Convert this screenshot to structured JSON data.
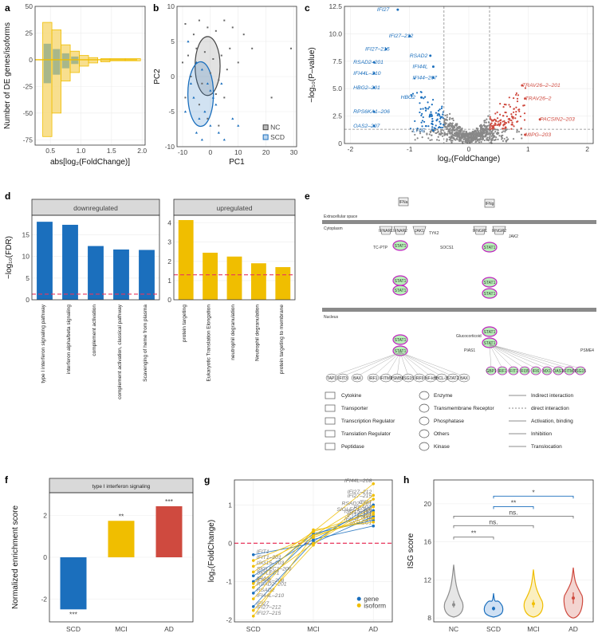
{
  "colors": {
    "blue": "#1b6fbd",
    "yellow": "#f0be00",
    "red": "#cf4a3f",
    "gray": "#8c8c8c",
    "dash": "#e8365d"
  },
  "panel_labels": [
    "a",
    "b",
    "c",
    "d",
    "e",
    "f",
    "g",
    "h"
  ],
  "chart_data": [
    {
      "id": "a",
      "type": "bar",
      "xlabel": "abs[log₂(FoldChange)]",
      "ylabel": "Number of DE genes/isoforms",
      "xlim": [
        0.25,
        2.05
      ],
      "ylim": [
        -80,
        50
      ],
      "xticks": [
        "0.5",
        "1.0",
        "1.5",
        "2.0"
      ],
      "yticks": [
        "50",
        "25",
        "0",
        "-25",
        "-50",
        "-75"
      ],
      "series": [
        {
          "values": [
            [
              0.45,
              -72,
              35
            ],
            [
              0.6,
              -50,
              28
            ],
            [
              0.75,
              -20,
              14
            ],
            [
              0.9,
              -12,
              8
            ],
            [
              1.05,
              -6,
              4
            ],
            [
              1.2,
              -3,
              2
            ],
            [
              1.4,
              -2,
              1
            ],
            [
              1.6,
              -1,
              1
            ],
            [
              1.85,
              -1,
              1
            ]
          ]
        },
        {
          "values": [
            [
              0.45,
              -22,
              15
            ],
            [
              0.6,
              -14,
              10
            ],
            [
              0.75,
              -8,
              6
            ],
            [
              0.9,
              -4,
              3
            ]
          ]
        }
      ]
    },
    {
      "id": "b",
      "type": "scatter",
      "xlabel": "PC1",
      "ylabel": "PC2",
      "xlim": [
        -12,
        31
      ],
      "ylim": [
        -10,
        10
      ],
      "xticks": [
        "-10",
        "0",
        "10",
        "20",
        "30"
      ],
      "yticks": [
        "10",
        "5",
        "0",
        "-5",
        "-10"
      ],
      "legend": [
        "NC",
        "SCD"
      ],
      "legend_position": "bottom-right",
      "series": [
        {
          "name": "NC",
          "points": [
            [
              -9,
              7.5
            ],
            [
              -6,
              6
            ],
            [
              -4,
              8
            ],
            [
              -1,
              7
            ],
            [
              2,
              6.5
            ],
            [
              5,
              8
            ],
            [
              8,
              7
            ],
            [
              12,
              6
            ],
            [
              -8,
              3
            ],
            [
              -5,
              4
            ],
            [
              -2,
              3.5
            ],
            [
              1,
              2.5
            ],
            [
              4,
              3
            ],
            [
              7,
              4
            ],
            [
              10,
              2
            ],
            [
              15,
              4
            ],
            [
              -7,
              0
            ],
            [
              -3,
              -1
            ],
            [
              0,
              0.5
            ],
            [
              3,
              -0.5
            ],
            [
              6,
              1
            ],
            [
              -9,
              -3
            ],
            [
              -4,
              -4
            ],
            [
              2,
              -2.5
            ],
            [
              5,
              -3
            ],
            [
              -1,
              -6
            ],
            [
              3,
              -7
            ],
            [
              29,
              4
            ],
            [
              22,
              -3
            ],
            [
              -10,
              2
            ]
          ]
        },
        {
          "name": "SCD",
          "points": [
            [
              -8,
              5
            ],
            [
              -5,
              2
            ],
            [
              -3,
              1
            ],
            [
              -1,
              -1
            ],
            [
              0,
              -2
            ],
            [
              1,
              -3
            ],
            [
              2,
              -4
            ],
            [
              -2,
              -5
            ],
            [
              -4,
              -6
            ],
            [
              -6,
              -3
            ],
            [
              -7,
              -1
            ],
            [
              0,
              -7
            ],
            [
              3,
              -8
            ],
            [
              5,
              -9
            ],
            [
              -3,
              -9
            ],
            [
              8,
              -6
            ],
            [
              10,
              -7
            ],
            [
              -5,
              -8
            ],
            [
              4,
              -1
            ],
            [
              -9,
              -5
            ]
          ]
        }
      ]
    },
    {
      "id": "c",
      "type": "scatter",
      "xlabel": "log₂(FoldChange)",
      "ylabel": "−log₁₀(P–value)",
      "xlim": [
        -2.1,
        2.1
      ],
      "ylim": [
        0,
        12.5
      ],
      "xticks": [
        "-2",
        "-1",
        "0",
        "1",
        "2"
      ],
      "yticks": [
        "0",
        "2.5",
        "5.0",
        "7.5",
        "10.0",
        "12.5"
      ],
      "annotations": [
        {
          "text": "IFI27",
          "x": -1.55,
          "y": 12.2,
          "side": "down"
        },
        {
          "text": "IFI27–212",
          "x": -1.35,
          "y": 9.8,
          "side": "down"
        },
        {
          "text": "IFI27–215",
          "x": -1.75,
          "y": 8.6,
          "side": "down"
        },
        {
          "text": "RSAD2",
          "x": -1.0,
          "y": 8.0,
          "side": "down"
        },
        {
          "text": "RSAD2–201",
          "x": -1.95,
          "y": 7.4,
          "side": "down"
        },
        {
          "text": "IFI44L",
          "x": -0.95,
          "y": 7.0,
          "side": "down"
        },
        {
          "text": "IFI44L–210",
          "x": -1.95,
          "y": 6.4,
          "side": "down"
        },
        {
          "text": "IFI44–207",
          "x": -0.95,
          "y": 6.0,
          "side": "down"
        },
        {
          "text": "HBG2–201",
          "x": -1.95,
          "y": 5.1,
          "side": "down"
        },
        {
          "text": "HBG2",
          "x": -1.15,
          "y": 4.2,
          "side": "down"
        },
        {
          "text": "RPS6KA1–206",
          "x": -1.95,
          "y": 2.9,
          "side": "down"
        },
        {
          "text": "OAS2–207",
          "x": -1.95,
          "y": 1.6,
          "side": "down"
        },
        {
          "text": "LY6E",
          "x": -0.95,
          "y": 1.2,
          "side": "down"
        },
        {
          "text": "TRAV26–2–201",
          "x": 0.9,
          "y": 5.3,
          "side": "up"
        },
        {
          "text": "TRAV26–2",
          "x": 0.95,
          "y": 4.1,
          "side": "up"
        },
        {
          "text": "PACSIN2–203",
          "x": 1.2,
          "y": 2.2,
          "side": "up"
        },
        {
          "text": "MIPG–203",
          "x": 0.95,
          "y": 0.8,
          "side": "up"
        }
      ]
    },
    {
      "id": "d",
      "type": "bar",
      "ylabel": "−log₁₀(FDR)",
      "facets": [
        {
          "title": "downregulated",
          "ylim": [
            0,
            19.5
          ],
          "yticks": [
            "0",
            "5",
            "10",
            "15"
          ],
          "categories": [
            "type I interferon signaling pathway",
            "interferon alpha/beta signaling",
            "complement activation",
            "complement activation, classical pathway",
            "Scavenging of heme from plasma"
          ],
          "values": [
            18.0,
            17.3,
            12.4,
            11.6,
            11.5
          ]
        },
        {
          "title": "upregulated",
          "ylim": [
            0,
            4.4
          ],
          "yticks": [
            "0",
            "1",
            "2",
            "3",
            "4"
          ],
          "categories": [
            "protein targeting",
            "Eukaryotic Translation Elongation",
            "neutrophil degranulation",
            "Neutrophil degranulation",
            "protein targeting to membrane"
          ],
          "values": [
            4.15,
            2.45,
            2.25,
            1.9,
            1.7
          ]
        }
      ],
      "threshold": 1.3
    },
    {
      "id": "f",
      "type": "bar",
      "title": "type I interferon signaling",
      "ylabel": "Normalized enrichment score",
      "ylim": [
        -3.1,
        3.1
      ],
      "yticks": [
        "2",
        "0",
        "-2"
      ],
      "categories": [
        "SCD",
        "MCI",
        "AD"
      ],
      "values": [
        -2.5,
        1.75,
        2.45
      ],
      "significance": [
        "***",
        "**",
        "***"
      ]
    },
    {
      "id": "g",
      "type": "line",
      "ylabel": "log₂(FoldChange)",
      "ylim": [
        -2.05,
        1.65
      ],
      "yticks": [
        "1",
        "0",
        "-1",
        "-2"
      ],
      "categories": [
        "SCD",
        "MCI",
        "AD"
      ],
      "legend": [
        "gene",
        "isoform"
      ],
      "series": [
        {
          "name": "IFI27",
          "kind": "gene",
          "values": [
            -1.65,
            0.05,
            1.0
          ]
        },
        {
          "name": "RSAD2",
          "kind": "gene",
          "values": [
            -1.3,
            0.2,
            0.85
          ]
        },
        {
          "name": "IFI44L",
          "kind": "gene",
          "values": [
            -1.0,
            0.25,
            0.6
          ]
        },
        {
          "name": "SIGLEC1",
          "kind": "gene",
          "values": [
            -0.85,
            0.1,
            0.45
          ]
        },
        {
          "name": "IFIT1",
          "kind": "gene",
          "values": [
            -0.3,
            0.0,
            0.7
          ]
        },
        {
          "name": "IFI27–215",
          "kind": "isoform",
          "values": [
            -1.9,
            0.2,
            1.15
          ]
        },
        {
          "name": "IFI44L–208",
          "kind": "isoform",
          "values": [
            -1.05,
            0.3,
            1.55
          ]
        },
        {
          "name": "RSAD2–201",
          "kind": "isoform",
          "values": [
            -1.15,
            0.0,
            0.95
          ]
        },
        {
          "name": "IFI44L–210",
          "kind": "isoform",
          "values": [
            -1.45,
            0.35,
            0.55
          ]
        },
        {
          "name": "IFI27–212",
          "kind": "isoform",
          "values": [
            -1.75,
            -0.05,
            1.25
          ]
        },
        {
          "name": "ISG15–203",
          "kind": "isoform",
          "values": [
            -0.6,
            0.15,
            0.75
          ]
        },
        {
          "name": "SIGLEC1–206",
          "kind": "isoform",
          "values": [
            -0.75,
            0.3,
            0.8
          ]
        },
        {
          "name": "IFIT1–201",
          "kind": "isoform",
          "values": [
            -0.45,
            0.2,
            0.65
          ]
        }
      ]
    },
    {
      "id": "h",
      "type": "violin",
      "ylabel": "ISG score",
      "ylim": [
        7.6,
        22.5
      ],
      "yticks": [
        "8",
        "12",
        "16",
        "20"
      ],
      "categories": [
        "NC",
        "SCD",
        "MCI",
        "AD"
      ],
      "series": [
        {
          "name": "NC",
          "min": 8.1,
          "max": 13.6,
          "mean": 9.4,
          "ci": [
            9.1,
            9.8
          ]
        },
        {
          "name": "SCD",
          "min": 8.1,
          "max": 10.6,
          "mean": 9.0,
          "ci": [
            8.8,
            9.2
          ]
        },
        {
          "name": "MCI",
          "min": 8.1,
          "max": 13.1,
          "mean": 9.5,
          "ci": [
            9.1,
            9.9
          ]
        },
        {
          "name": "AD",
          "min": 8.0,
          "max": 13.3,
          "mean": 10.1,
          "ci": [
            9.5,
            10.7
          ]
        }
      ],
      "brackets": [
        {
          "from": 0,
          "to": 1,
          "y": 16.5,
          "label": "**",
          "color": "gray"
        },
        {
          "from": 0,
          "to": 2,
          "y": 17.7,
          "label": "ns.",
          "color": "gray"
        },
        {
          "from": 0,
          "to": 3,
          "y": 18.7,
          "label": "ns.",
          "color": "gray"
        },
        {
          "from": 1,
          "to": 2,
          "y": 19.7,
          "label": "**",
          "color": "blue"
        },
        {
          "from": 1,
          "to": 3,
          "y": 20.8,
          "label": "*",
          "color": "blue"
        }
      ]
    }
  ],
  "pathway": {
    "labels": {
      "extracellular": "Extracellular space",
      "cytoplasm": "Cytoplasm",
      "nucleus": "Nucleus",
      "glucocorticoid": "Glucocorticoid"
    },
    "nodes_left": [
      "IFNa",
      "IFNAR1",
      "IFNAR2",
      "JAK1",
      "TYK2",
      "TC-PTP",
      "STAT1",
      "SOCS1",
      "STAT2",
      "IRF9",
      "NF-kB",
      "BCL-3",
      "BAX",
      "IRF1",
      "TAP1",
      "IFIT3",
      "IFITM1",
      "PSMB8",
      "ISG15"
    ],
    "nodes_right": [
      "IFNg",
      "IFNGR1",
      "IFNGR2",
      "JAK2",
      "STAT1",
      "GBP1",
      "IRF1",
      "IFIT1",
      "IFI35",
      "IFI6",
      "MX1",
      "OAS1",
      "IFITM3",
      "ISG15",
      "PIAS1",
      "PSME4"
    ],
    "legend": {
      "shapes": [
        "Cytokine",
        "Transporter",
        "Transcription Regulator",
        "Translation Regulator",
        "Peptidase",
        "Enzyme",
        "Transmembrane Receptor",
        "Phosphatase",
        "Others",
        "Kinase"
      ],
      "lines": [
        "Indirect interaction",
        "direct interaction",
        "Activation, binding",
        "Inhibition",
        "Translocation"
      ]
    }
  }
}
